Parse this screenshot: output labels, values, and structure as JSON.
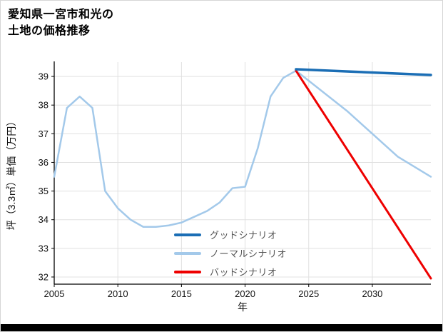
{
  "window": {
    "bottom_bar_color": "#000000"
  },
  "title": {
    "line1": "愛知県一宮市和光の",
    "line2": "土地の価格推移"
  },
  "chart_data": {
    "type": "line",
    "title": "愛知県一宮市和光の土地の価格推移",
    "xlabel": "年",
    "ylabel": "坪（3.3㎡）単価（万円）",
    "x_ticks": [
      2005,
      2010,
      2015,
      2020,
      2025,
      2030
    ],
    "y_ticks": [
      32,
      33,
      34,
      35,
      36,
      37,
      38,
      39
    ],
    "xlim": [
      2005,
      2034.6
    ],
    "ylim": [
      31.75,
      39.5
    ],
    "grid": true,
    "legend_position": "lower-center-inside",
    "colors": {
      "good": "#1b6eb5",
      "normal": "#a3c9ea",
      "bad": "#ee0000",
      "grid": "#e0e0e0",
      "axis": "#000000"
    },
    "series": [
      {
        "key": "normal",
        "name": "ノーマルシナリオ",
        "color": "#a3c9ea",
        "width": 2.5,
        "x": [
          2005,
          2006,
          2007,
          2008,
          2009,
          2010,
          2011,
          2012,
          2013,
          2014,
          2015,
          2016,
          2017,
          2018,
          2019,
          2020,
          2021,
          2022,
          2023,
          2024,
          2026,
          2028,
          2030,
          2032,
          2034.6
        ],
        "y": [
          35.5,
          37.9,
          38.3,
          37.9,
          35.0,
          34.4,
          34.0,
          33.75,
          33.75,
          33.8,
          33.9,
          34.1,
          34.3,
          34.6,
          35.1,
          35.15,
          36.5,
          38.3,
          38.95,
          39.2,
          38.5,
          37.8,
          37.0,
          36.2,
          35.5
        ]
      },
      {
        "key": "bad",
        "name": "バッドシナリオ",
        "color": "#ee0000",
        "width": 3,
        "x": [
          2024,
          2034.6
        ],
        "y": [
          39.2,
          31.95
        ]
      },
      {
        "key": "good",
        "name": "グッドシナリオ",
        "color": "#1b6eb5",
        "width": 3.5,
        "x": [
          2024,
          2034.6
        ],
        "y": [
          39.25,
          39.05
        ]
      }
    ],
    "legend": [
      {
        "key": "good",
        "label": "グッドシナリオ",
        "color": "#1b6eb5"
      },
      {
        "key": "normal",
        "label": "ノーマルシナリオ",
        "color": "#a3c9ea"
      },
      {
        "key": "bad",
        "label": "バッドシナリオ",
        "color": "#ee0000"
      }
    ]
  }
}
